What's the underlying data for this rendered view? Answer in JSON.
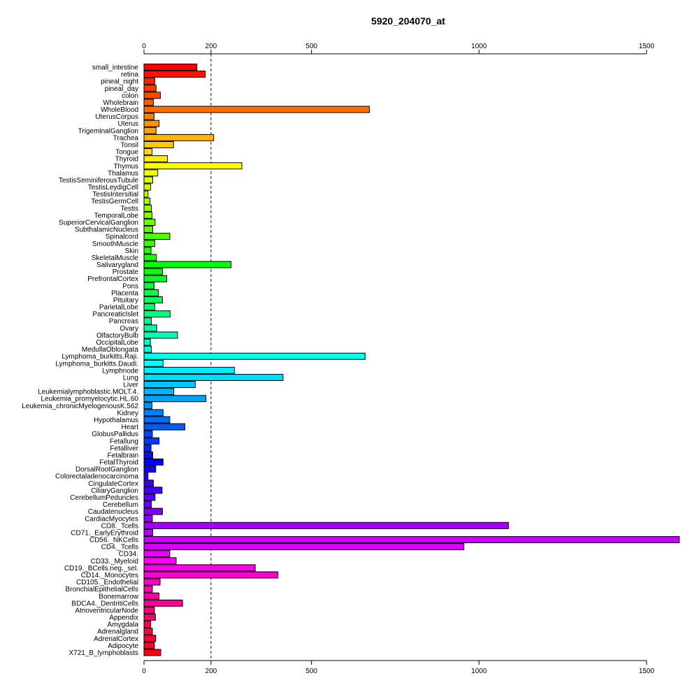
{
  "chart_data": {
    "type": "bar",
    "orientation": "horizontal",
    "title": "5920_204070_at",
    "xlabel": "",
    "ylabel": "",
    "x_axis_ticks": [
      0,
      200,
      500,
      1000,
      1500
    ],
    "x_axis_positions": [
      "top",
      "bottom"
    ],
    "reference_line": 200,
    "reference_line_style": "dashed",
    "reference_line_color": "#00008B",
    "bar_border_color": "#000000",
    "color_scheme": "rainbow",
    "grid": false,
    "legend": "none",
    "categories": [
      "small_intestine",
      "retina",
      "pineal_night",
      "pineal_day",
      "colon",
      "Wholebrain",
      "WholeBlood",
      "UterusCorpus",
      "Uterus",
      "TrigeminalGanglion",
      "Trachea",
      "Tonsil",
      "Tongue",
      "Thyroid",
      "Thymus",
      "Thalamus",
      "TestisSeminiferousTubule",
      "TestisLeydigCell",
      "TestisIntersitial",
      "TestisGermCell",
      "Testis",
      "TemporalLobe",
      "SuperiorCervicalGanglion",
      "SubthalamicNucleus",
      "Spinalcord",
      "SmoothMuscle",
      "Skin",
      "SkeletalMuscle",
      "Salivarygland",
      "Prostate",
      "PrefrontalCortex",
      "Pons",
      "Placenta",
      "Pituitary",
      "ParietalLobe",
      "PancreaticIslet",
      "Pancreas",
      "Ovary",
      "OlfactoryBulb",
      "OccipitalLobe",
      "MedullaOblongata",
      "Lymphoma_burkitts.Raji.",
      "Lymphoma_burkitts.Daudi.",
      "Lymphnode",
      "Lung",
      "Liver",
      "Leukemialymphoblastic.MOLT.4.",
      "Leukemia_promyelocytic.HL.60",
      "Leukemia_chronicMyelogenousK.562",
      "Kidney",
      "Hypothalamus",
      "Heart",
      "GlobusPallidus",
      "Fetallung",
      "Fetalliver",
      "Fetalbrain",
      "FetalThyroid",
      "DorsalRootGanglion",
      "Colorectaladenocarcinoma",
      "CingulateCortex",
      "CiliaryGanglion",
      "CerebellumPeduncles",
      "Cerebellum",
      "Caudatenucleus",
      "CardiacMyocytes",
      "CD8._Tcells",
      "CD71._EarlyErythroid",
      "CD56._NKCells",
      "CD4._Tcells",
      "CD34.",
      "CD33._Myeloid",
      "CD19._BCells.neg._sel.",
      "CD14._Monocytes",
      "CD105._Endothelial",
      "BronchialEpithelialCells",
      "Bonemarrow",
      "BDCA4._DentritiCells",
      "AtrioventricularNode",
      "Appendix",
      "Amygdala",
      "Adrenalgland",
      "AdrenalCortex",
      "Adipocyte",
      "X721_B_lymphoblasts"
    ],
    "values": [
      158,
      183,
      32,
      36,
      49,
      28,
      673,
      30,
      45,
      36,
      208,
      88,
      24,
      70,
      292,
      41,
      26,
      20,
      12,
      18,
      22,
      24,
      33,
      26,
      77,
      32,
      21,
      37,
      260,
      55,
      68,
      30,
      43,
      55,
      32,
      78,
      22,
      38,
      100,
      19,
      22,
      660,
      57,
      270,
      415,
      153,
      89,
      185,
      24,
      57,
      77,
      122,
      25,
      45,
      21,
      26,
      57,
      35,
      12,
      28,
      54,
      33,
      22,
      55,
      25,
      1088,
      26,
      1598,
      955,
      77,
      96,
      332,
      400,
      48,
      25,
      45,
      115,
      31,
      34,
      20,
      25,
      35,
      31,
      50
    ]
  }
}
